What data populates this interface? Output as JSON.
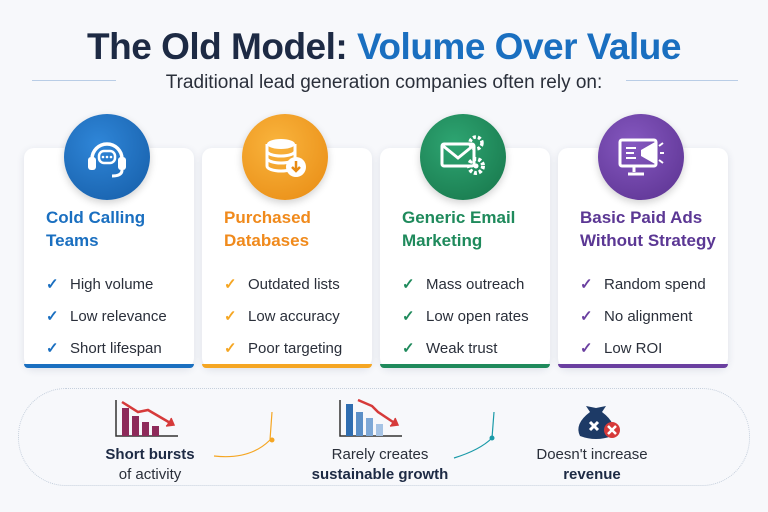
{
  "header": {
    "title_dark": "The Old Model:",
    "title_blue": "Volume Over Value",
    "subtitle": "Traditional lead generation companies often rely on:"
  },
  "colors": {
    "navy": "#1d2a44",
    "blue": "#1a6fc0",
    "orange": "#f5a623",
    "green": "#1f8a5c",
    "purple": "#6a3fa0",
    "red": "#d63a3a"
  },
  "cards": [
    {
      "icon": "headset-icon",
      "title_line1": "Cold Calling",
      "title_line2": "Teams",
      "items": [
        "High volume",
        "Low relevance",
        "Short lifespan"
      ]
    },
    {
      "icon": "database-download-icon",
      "title_line1": "Purchased",
      "title_line2": "Databases",
      "items": [
        "Outdated lists",
        "Low accuracy",
        "Poor targeting"
      ]
    },
    {
      "icon": "email-gears-icon",
      "title_line1": "Generic Email",
      "title_line2": "Marketing",
      "items": [
        "Mass outreach",
        "Low open rates",
        "Weak trust"
      ]
    },
    {
      "icon": "megaphone-monitor-icon",
      "title_line1": "Basic Paid Ads",
      "title_line2": "Without Strategy",
      "items": [
        "Random spend",
        "No alignment",
        "Low ROI"
      ]
    }
  ],
  "bottom": [
    {
      "icon": "declining-bar-chart-icon",
      "line1": "Short bursts",
      "line2": "of activity"
    },
    {
      "icon": "declining-bar-chart-icon",
      "line1": "Rarely creates",
      "line2": "sustainable growth"
    },
    {
      "icon": "money-bag-x-icon",
      "line1": "Doesn't increase",
      "line2": "revenue"
    }
  ]
}
